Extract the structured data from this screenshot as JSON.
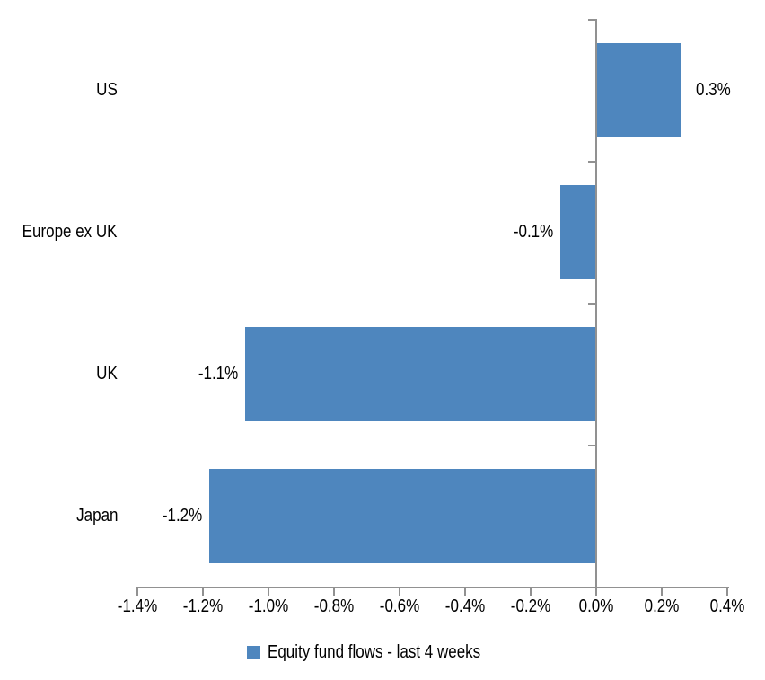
{
  "chart_data": {
    "type": "bar",
    "orientation": "horizontal",
    "title": "",
    "categories": [
      "US",
      "Europe ex UK",
      "UK",
      "Japan"
    ],
    "series": [
      {
        "name": "Equity fund flows - last 4 weeks",
        "values": [
          0.26,
          -0.11,
          -1.07,
          -1.18
        ],
        "data_labels": [
          "0.3%",
          "-0.1%",
          "-1.1%",
          "-1.2%"
        ]
      }
    ],
    "value_axis": {
      "unit": "%",
      "min": -1.4,
      "max": 0.4,
      "tick_step": 0.2,
      "tick_labels": [
        "-1.4%",
        "-1.2%",
        "-1.0%",
        "-0.8%",
        "-0.6%",
        "-0.4%",
        "-0.2%",
        "0.0%",
        "0.2%",
        "0.4%"
      ]
    },
    "legend": {
      "position": "bottom",
      "entries": [
        "Equity fund flows - last 4 weeks"
      ]
    },
    "grid": "off",
    "colors": {
      "bar": "#4E86BE",
      "axis": "#919191",
      "text": "#000000",
      "background": "#FFFFFF"
    }
  }
}
